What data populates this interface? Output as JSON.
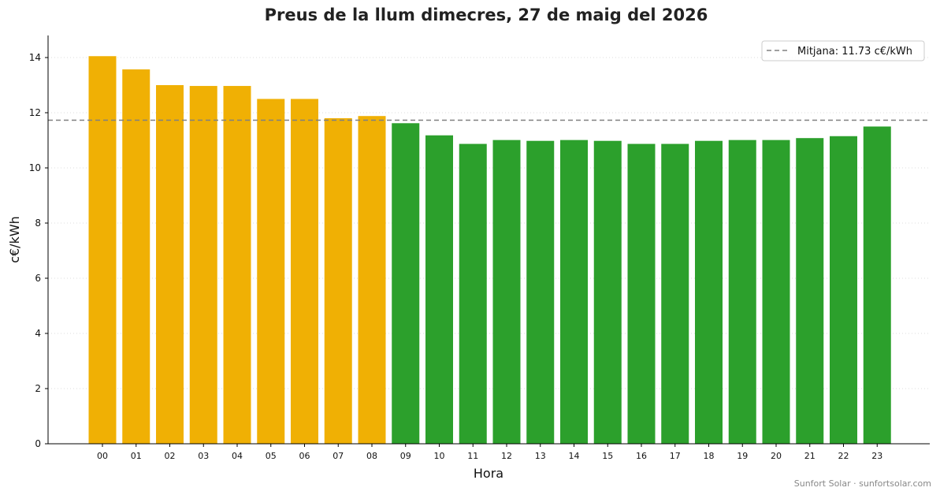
{
  "footer": "Sunfort Solar · sunfortsolar.com",
  "colors": {
    "above_average": "#f0b004",
    "below_average": "#2ca02c",
    "average_line": "#808080"
  },
  "chart_data": {
    "type": "bar",
    "title": "Preus de la llum dimecres, 27 de maig del 2026",
    "xlabel": "Hora",
    "ylabel": "c€/kWh",
    "ylim": [
      0,
      14.8
    ],
    "yticks": [
      0,
      2,
      4,
      6,
      8,
      10,
      12,
      14
    ],
    "grid": "horizontal dotted",
    "legend_position": "top-right",
    "categories": [
      "00",
      "01",
      "02",
      "03",
      "04",
      "05",
      "06",
      "07",
      "08",
      "09",
      "10",
      "11",
      "12",
      "13",
      "14",
      "15",
      "16",
      "17",
      "18",
      "19",
      "20",
      "21",
      "22",
      "23"
    ],
    "values": [
      14.05,
      13.57,
      13.0,
      12.97,
      12.97,
      12.5,
      12.5,
      11.8,
      11.88,
      11.62,
      11.18,
      10.87,
      11.01,
      10.98,
      11.01,
      10.98,
      10.87,
      10.87,
      10.98,
      11.01,
      11.01,
      11.08,
      11.15,
      11.5
    ],
    "average": {
      "value": 11.73,
      "label": "Mitjana: 11.73 c€/kWh",
      "style": "dashed"
    }
  }
}
